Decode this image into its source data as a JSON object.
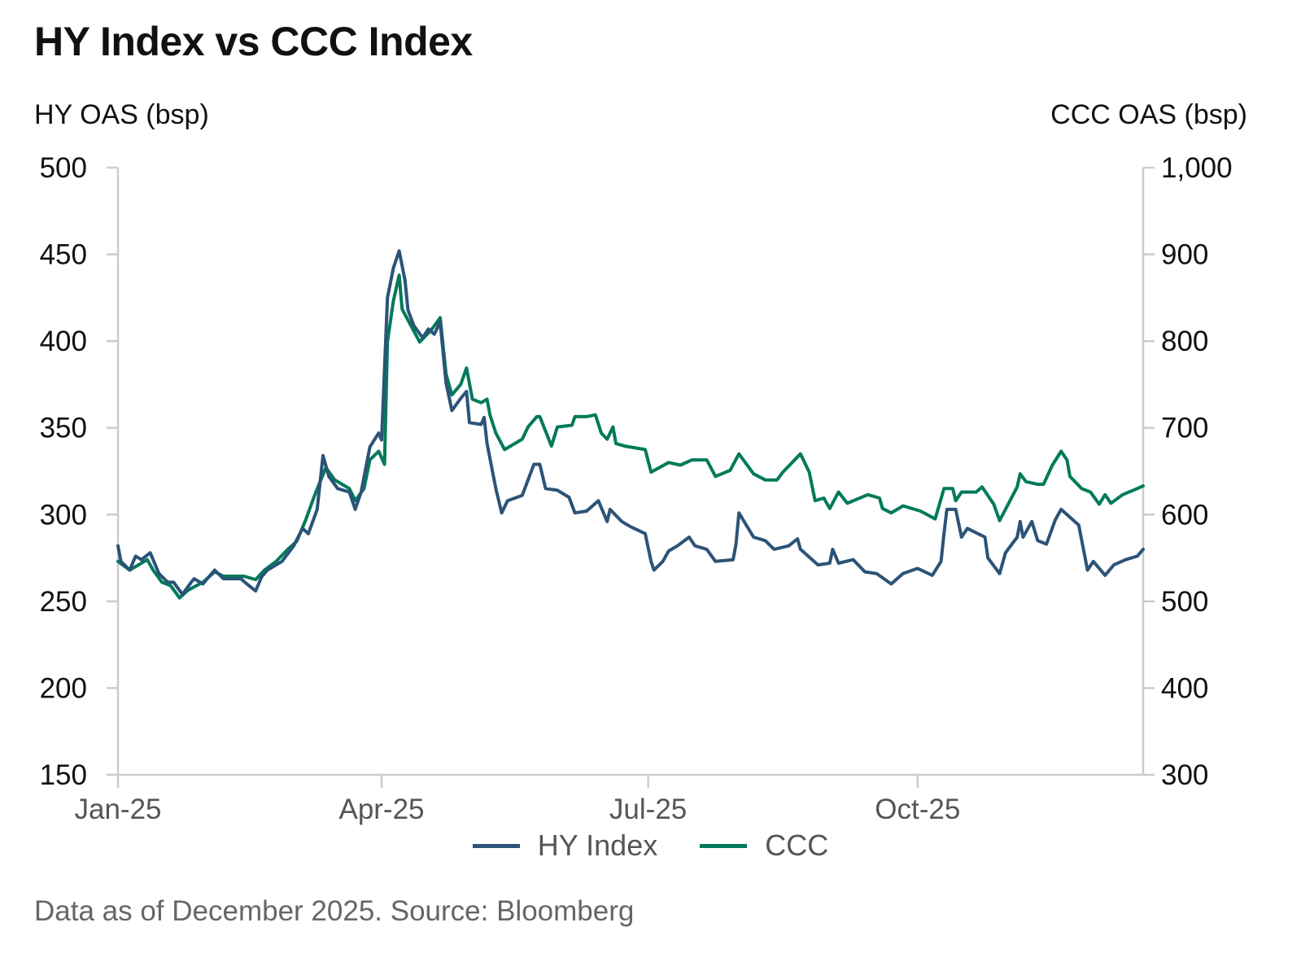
{
  "title": "HY Index vs CCC Index",
  "footer": "Data as of December 2025. Source: Bloomberg",
  "colors": {
    "hy": "#2c5378",
    "ccc": "#007a5a",
    "axis": "#cccccc"
  },
  "chart_data": {
    "type": "line",
    "title": "HY Index vs CCC Index",
    "ylabel_left": "HY OAS (bsp)",
    "ylabel_right": "CCC OAS (bsp)",
    "ylim_left": [
      150,
      500
    ],
    "ylim_right": [
      300,
      1000
    ],
    "yticks_left": [
      "500",
      "450",
      "400",
      "350",
      "300",
      "250",
      "200",
      "150"
    ],
    "yticks_right": [
      "1,000",
      "900",
      "800",
      "700",
      "600",
      "500",
      "400",
      "300"
    ],
    "yticks_left_values": [
      500,
      450,
      400,
      350,
      300,
      250,
      200,
      150
    ],
    "yticks_right_values": [
      1000,
      900,
      800,
      700,
      600,
      500,
      400,
      300
    ],
    "xlim_days": [
      0,
      350
    ],
    "xticks": [
      {
        "label": "Jan-25",
        "day": 0
      },
      {
        "label": "Apr-25",
        "day": 90
      },
      {
        "label": "Jul-25",
        "day": 181
      },
      {
        "label": "Oct-25",
        "day": 273
      }
    ],
    "grid": false,
    "legend_position": "bottom-center",
    "series": [
      {
        "name": "HY Index",
        "axis": "left",
        "x": [
          0,
          1,
          4,
          6,
          8,
          11,
          14,
          17,
          19,
          22,
          25,
          26,
          29,
          33,
          36,
          42,
          44,
          47,
          49,
          51,
          56,
          60,
          63,
          65,
          68,
          70,
          72,
          75,
          79,
          81,
          83,
          86,
          89,
          90,
          92,
          94,
          96,
          98,
          99,
          101,
          104,
          106,
          108,
          110,
          112,
          114,
          117,
          119,
          120,
          124,
          125,
          126,
          129,
          131,
          133,
          138,
          140,
          142,
          144,
          146,
          150,
          154,
          156,
          160,
          164,
          167,
          168,
          172,
          175,
          180,
          182,
          183,
          186,
          188,
          191,
          195,
          197,
          201,
          204,
          210,
          211,
          212,
          217,
          221,
          224,
          229,
          232,
          233,
          239,
          243,
          244,
          246,
          251,
          255,
          259,
          264,
          268,
          273,
          278,
          281,
          282,
          283,
          286,
          288,
          290,
          296,
          297,
          301,
          303,
          307,
          308,
          309,
          312,
          314,
          317,
          320,
          322,
          326,
          328,
          331,
          333,
          337,
          340,
          344,
          348,
          350
        ],
        "values": [
          282,
          273,
          268,
          276,
          274,
          278,
          266,
          261,
          261,
          254,
          261,
          263,
          260,
          268,
          263,
          263,
          260,
          256,
          264,
          268,
          273,
          282,
          292,
          289,
          303,
          334,
          322,
          315,
          313,
          303,
          313,
          339,
          347,
          343,
          425,
          442,
          452,
          435,
          418,
          409,
          402,
          407,
          404,
          411,
          376,
          360,
          367,
          371,
          353,
          352,
          356,
          341,
          315,
          301,
          308,
          311,
          320,
          329,
          329,
          315,
          314,
          310,
          301,
          302,
          308,
          296,
          303,
          296,
          293,
          289,
          273,
          268,
          273,
          279,
          282,
          287,
          282,
          280,
          273,
          274,
          283,
          301,
          287,
          285,
          280,
          282,
          286,
          280,
          271,
          272,
          280,
          272,
          274,
          267,
          266,
          260,
          266,
          269,
          265,
          273,
          289,
          303,
          303,
          287,
          292,
          287,
          275,
          266,
          278,
          287,
          296,
          287,
          296,
          285,
          283,
          297,
          303,
          297,
          294,
          268,
          273,
          265,
          271,
          274,
          276,
          280
        ]
      },
      {
        "name": "CCC",
        "axis": "right",
        "x": [
          0,
          4,
          10,
          12,
          15,
          18,
          21,
          24,
          29,
          33,
          36,
          43,
          47,
          50,
          54,
          58,
          61,
          64,
          67,
          69,
          71,
          74,
          79,
          81,
          84,
          86,
          89,
          91,
          92,
          94,
          96,
          97,
          100,
          103,
          107,
          110,
          112,
          114,
          117,
          119,
          121,
          124,
          126,
          127,
          129,
          132,
          138,
          140,
          143,
          144,
          148,
          150,
          155,
          156,
          160,
          163,
          165,
          167,
          169,
          170,
          173,
          180,
          182,
          188,
          192,
          196,
          201,
          204,
          209,
          212,
          217,
          221,
          225,
          227,
          233,
          236,
          238,
          241,
          243,
          246,
          249,
          256,
          260,
          261,
          264,
          268,
          274,
          279,
          282,
          285,
          286,
          288,
          293,
          295,
          299,
          301,
          307,
          308,
          310,
          314,
          316,
          319,
          322,
          324,
          325,
          329,
          332,
          335,
          337,
          339,
          343,
          348,
          350
        ],
        "values": [
          546,
          536,
          548,
          536,
          522,
          518,
          504,
          513,
          522,
          534,
          529,
          529,
          525,
          536,
          546,
          560,
          569,
          593,
          621,
          638,
          654,
          640,
          630,
          616,
          630,
          663,
          673,
          658,
          799,
          846,
          876,
          837,
          818,
          799,
          813,
          827,
          762,
          738,
          750,
          769,
          733,
          729,
          733,
          715,
          694,
          675,
          687,
          701,
          713,
          713,
          679,
          701,
          703,
          713,
          713,
          715,
          694,
          687,
          701,
          682,
          679,
          675,
          649,
          660,
          657,
          663,
          663,
          644,
          651,
          670,
          647,
          640,
          640,
          649,
          670,
          649,
          616,
          619,
          607,
          626,
          613,
          623,
          619,
          607,
          602,
          610,
          604,
          595,
          630,
          630,
          616,
          626,
          626,
          632,
          612,
          593,
          632,
          647,
          638,
          635,
          635,
          657,
          673,
          663,
          644,
          630,
          626,
          612,
          623,
          613,
          623,
          630,
          633
        ]
      }
    ]
  }
}
